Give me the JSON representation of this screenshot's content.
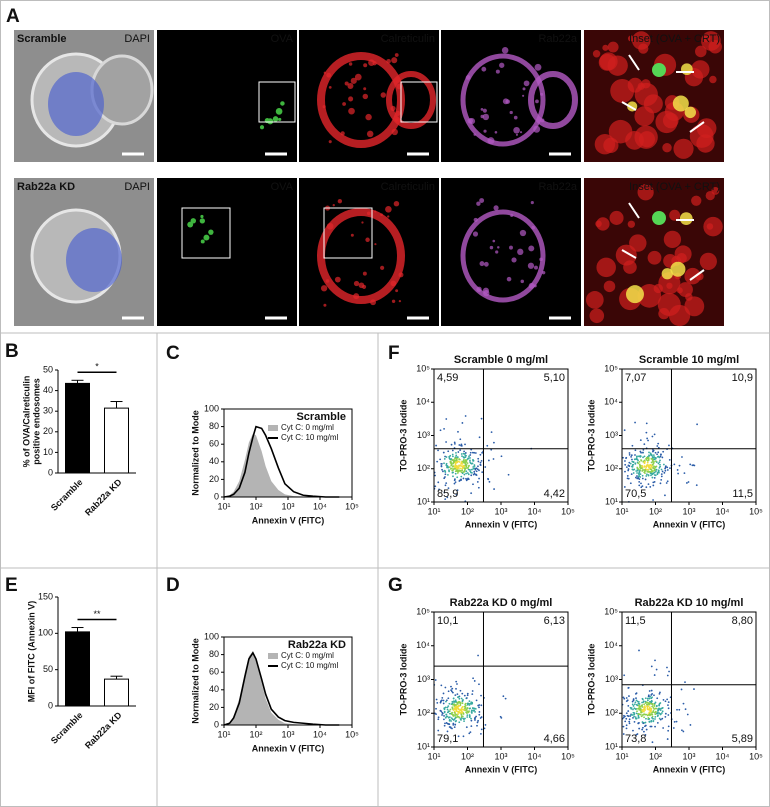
{
  "chart_data": [
    {
      "type": "image_grid",
      "panel_label": "A",
      "rows": [
        {
          "label": "Scramble",
          "channels": [
            "DAPI",
            "OVA",
            "Calreticulin",
            "Rab22a",
            "Inset (OVA + CRT)"
          ]
        },
        {
          "label": "Rab22a KD",
          "channels": [
            "DAPI",
            "OVA",
            "Calreticulin",
            "Rab22a",
            "Inset (OVA + CRT)"
          ]
        }
      ],
      "channel_colors": [
        "#4a5fd0",
        "#3fb53f",
        "#e3262b",
        "#b45ac4",
        "#f3e24a"
      ]
    },
    {
      "type": "bar",
      "panel_label": "B",
      "ylabel": [
        "% of OVA/Calreticulin",
        "positive endosomes"
      ],
      "categories": [
        "Scramble",
        "Rab22a KD"
      ],
      "values": [
        43.5,
        31.5
      ],
      "errors": [
        1.5,
        3.2
      ],
      "colors": [
        "#000000",
        "#ffffff"
      ],
      "ylim": [
        0,
        50
      ],
      "yticks": [
        0,
        10,
        20,
        30,
        40,
        50
      ],
      "significance": "*"
    },
    {
      "type": "line",
      "panel_label": "C",
      "title": "Scramble",
      "xlabel": "Annexin V (FITC)",
      "ylabel": "Normalized to Mode",
      "log_x": true,
      "x": [
        10,
        15,
        20,
        30,
        45,
        60,
        80,
        100,
        150,
        200,
        300,
        500,
        800,
        1500,
        3000,
        6000,
        15000,
        40000
      ],
      "series": [
        {
          "name": "Cyt C: 0 mg/ml",
          "color": "#b4b4b4",
          "fill": true,
          "values": [
            0,
            2,
            6,
            18,
            42,
            62,
            72,
            70,
            52,
            35,
            18,
            8,
            3,
            1,
            0.5,
            0,
            0,
            0
          ]
        },
        {
          "name": "Cyt C: 10 mg/ml",
          "color": "#000000",
          "fill": false,
          "values": [
            0,
            1,
            3,
            10,
            28,
            50,
            68,
            80,
            78,
            70,
            55,
            33,
            15,
            6,
            2,
            1,
            0,
            0
          ]
        }
      ],
      "xlim": [
        10,
        100000
      ],
      "xticks": [
        {
          "value": 10,
          "label": "10¹"
        },
        {
          "value": 100,
          "label": "10²"
        },
        {
          "value": 1000,
          "label": "10³"
        },
        {
          "value": 10000,
          "label": "10⁴"
        },
        {
          "value": 100000,
          "label": "10⁵"
        }
      ],
      "ylim": [
        0,
        100
      ],
      "yticks": [
        0,
        20,
        40,
        60,
        80,
        100
      ]
    },
    {
      "type": "line",
      "panel_label": "D",
      "title": "Rab22a KD",
      "xlabel": "Annexin V (FITC)",
      "ylabel": "Normalized to Mode",
      "log_x": true,
      "x": [
        10,
        15,
        20,
        30,
        45,
        60,
        80,
        100,
        150,
        200,
        300,
        500,
        800,
        1500,
        3000,
        6000,
        15000,
        40000
      ],
      "series": [
        {
          "name": "Cyt C: 0 mg/ml",
          "color": "#b4b4b4",
          "fill": true,
          "values": [
            0,
            3,
            10,
            30,
            60,
            78,
            84,
            72,
            48,
            30,
            14,
            6,
            2,
            1,
            0,
            0,
            0,
            0
          ]
        },
        {
          "name": "Cyt C: 10 mg/ml",
          "color": "#000000",
          "fill": false,
          "values": [
            0,
            2,
            8,
            25,
            55,
            75,
            82,
            75,
            52,
            35,
            18,
            9,
            5,
            3,
            2,
            1,
            0,
            0
          ]
        }
      ],
      "xlim": [
        10,
        100000
      ],
      "xticks": [
        {
          "value": 10,
          "label": "10¹"
        },
        {
          "value": 100,
          "label": "10²"
        },
        {
          "value": 1000,
          "label": "10³"
        },
        {
          "value": 10000,
          "label": "10⁴"
        },
        {
          "value": 100000,
          "label": "10⁵"
        }
      ],
      "ylim": [
        0,
        100
      ],
      "yticks": [
        0,
        20,
        40,
        60,
        80,
        100
      ]
    },
    {
      "type": "bar",
      "panel_label": "E",
      "ylabel": [
        "MFI of FITC (Annexin V)"
      ],
      "categories": [
        "Scramble",
        "Rab22a KD"
      ],
      "values": [
        102,
        37
      ],
      "errors": [
        6,
        4
      ],
      "colors": [
        "#000000",
        "#ffffff"
      ],
      "ylim": [
        0,
        150
      ],
      "yticks": [
        0,
        50,
        100,
        150
      ],
      "significance": "**"
    },
    {
      "type": "quadrant",
      "panel_label": "F",
      "xlabel": "Annexin V (FITC)",
      "ylabel": "TO-PRO-3 Iodide",
      "highlight_color": "#c0272d",
      "xlim": [
        10,
        100000
      ],
      "ylim": [
        10,
        100000
      ],
      "xticks": [
        {
          "value": 10,
          "label": "10¹"
        },
        {
          "value": 100,
          "label": "10²"
        },
        {
          "value": 1000,
          "label": "10³"
        },
        {
          "value": 10000,
          "label": "10⁴"
        },
        {
          "value": 100000,
          "label": "10⁵"
        }
      ],
      "yticks": [
        {
          "value": 10,
          "label": "10¹"
        },
        {
          "value": 100,
          "label": "10²"
        },
        {
          "value": 1000,
          "label": "10³"
        },
        {
          "value": 10000,
          "label": "10⁴"
        },
        {
          "value": 100000,
          "label": "10⁵"
        }
      ],
      "plots": [
        {
          "title": "Scramble 0 mg/ml",
          "gate": [
            300,
            400
          ],
          "values": [
            4.59,
            5.1,
            85.9,
            4.42
          ],
          "value_labels": [
            "4,59",
            "5,10",
            "85,9",
            "4,42"
          ]
        },
        {
          "title": "Scramble 10 mg/ml",
          "gate": [
            300,
            400
          ],
          "values": [
            7.07,
            10.9,
            70.5,
            11.5
          ],
          "value_labels": [
            "7,07",
            "10,9",
            "70,5",
            "11,5"
          ]
        }
      ]
    },
    {
      "type": "quadrant",
      "panel_label": "G",
      "xlabel": "Annexin V (FITC)",
      "ylabel": "TO-PRO-3 Iodide",
      "highlight_color": "#c0272d",
      "xlim": [
        10,
        100000
      ],
      "ylim": [
        10,
        100000
      ],
      "xticks": [
        {
          "value": 10,
          "label": "10¹"
        },
        {
          "value": 100,
          "label": "10²"
        },
        {
          "value": 1000,
          "label": "10³"
        },
        {
          "value": 10000,
          "label": "10⁴"
        },
        {
          "value": 100000,
          "label": "10⁵"
        }
      ],
      "yticks": [
        {
          "value": 10,
          "label": "10¹"
        },
        {
          "value": 100,
          "label": "10²"
        },
        {
          "value": 1000,
          "label": "10³"
        },
        {
          "value": 10000,
          "label": "10⁴"
        },
        {
          "value": 100000,
          "label": "10⁵"
        }
      ],
      "plots": [
        {
          "title": "Rab22a KD 0 mg/ml",
          "gate": [
            300,
            2500
          ],
          "values": [
            10.1,
            6.13,
            79.1,
            4.66
          ],
          "value_labels": [
            "10,1",
            "6,13",
            "79,1",
            "4,66"
          ]
        },
        {
          "title": "Rab22a KD 10 mg/ml",
          "gate": [
            300,
            700
          ],
          "values": [
            11.5,
            8.8,
            73.8,
            5.89
          ],
          "value_labels": [
            "11,5",
            "8,80",
            "73,8",
            "5,89"
          ]
        }
      ]
    }
  ]
}
